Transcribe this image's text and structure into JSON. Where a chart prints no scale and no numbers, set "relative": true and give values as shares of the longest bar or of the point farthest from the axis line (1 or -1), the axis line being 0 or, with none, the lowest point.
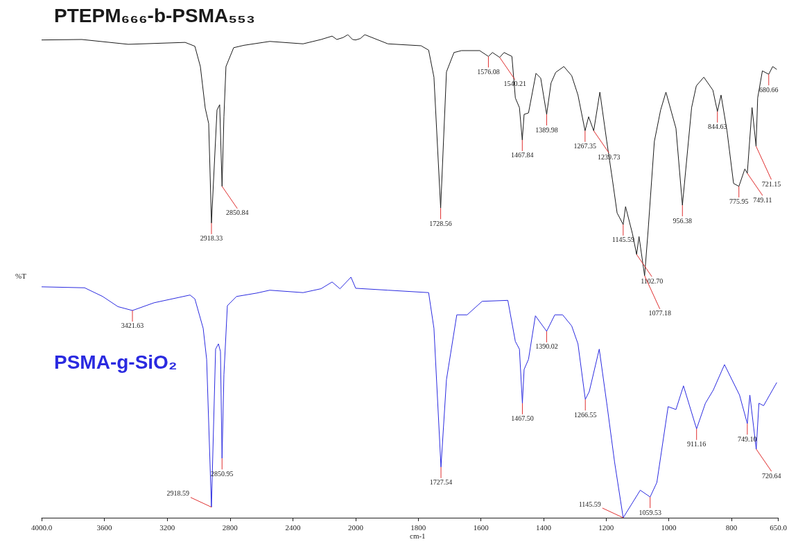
{
  "chart_data": [
    {
      "type": "line",
      "relative": true,
      "ylabel": "%T",
      "xlim": [
        4000,
        2000
      ],
      "xticks": [
        {
          "value": 4000,
          "label": "4000.0"
        },
        3600,
        3200,
        2800,
        2400,
        2000
      ],
      "tick_labels": "x",
      "series": [
        {
          "name": "PTEPM₆₆₆-b-PSMA₅₅₃",
          "color": "#1a1a1a",
          "x": [
            4000,
            3744,
            3448,
            3086,
            3024,
            2989,
            2958,
            2936,
            2918.33,
            2883,
            2866,
            2850.84,
            2839,
            2826,
            2777,
            2711,
            2547,
            2335,
            2220,
            2150,
            2120,
            2080,
            2050,
            2020,
            2000
          ],
          "values": [
            0.989,
            0.99,
            0.98,
            0.984,
            0.976,
            0.934,
            0.848,
            0.816,
            0.61,
            0.844,
            0.855,
            0.686,
            0.83,
            0.934,
            0.973,
            0.978,
            0.986,
            0.981,
            0.99,
            0.997,
            0.99,
            0.994,
            1.0,
            0.99,
            0.989
          ]
        },
        {
          "name": "PSMA-g-SiO₂",
          "color": "#2a2ae0",
          "x": [
            4000,
            3726,
            3611,
            3514,
            3421.63,
            3284,
            3055,
            3024,
            2971,
            2949,
            2918.59,
            2892,
            2874,
            2861,
            2850.95,
            2839,
            2817,
            2759,
            2631,
            2547,
            2335,
            2221,
            2150,
            2100,
            2030,
            2000
          ],
          "values": [
            0.478,
            0.476,
            0.458,
            0.437,
            0.429,
            0.445,
            0.461,
            0.453,
            0.392,
            0.328,
            0.022,
            0.349,
            0.36,
            0.344,
            0.123,
            0.296,
            0.439,
            0.458,
            0.465,
            0.471,
            0.466,
            0.474,
            0.488,
            0.474,
            0.498,
            0.475
          ]
        }
      ],
      "annotations": [
        {
          "text": "2918.33",
          "x": 2918.33,
          "y": 0.61
        },
        {
          "text": "2850.84",
          "x": 2850.84,
          "y": 0.686
        },
        {
          "text": "3421.63",
          "x": 3421.63,
          "y": 0.429
        },
        {
          "text": "2918.59",
          "x": 2918.59,
          "y": 0.022
        },
        {
          "text": "2850.95",
          "x": 2850.95,
          "y": 0.123
        }
      ]
    },
    {
      "type": "line",
      "relative": true,
      "xlabel": "cm-1",
      "xlim": [
        2000,
        650
      ],
      "xticks": [
        1800,
        1600,
        1400,
        1200,
        1000,
        800,
        {
          "value": 650,
          "label": "650.0"
        }
      ],
      "tick_labels": "x",
      "series": [
        {
          "color": "#1a1a1a",
          "x": [
            2000,
            1985,
            1971,
            1897,
            1791,
            1767,
            1750,
            1728.56,
            1710,
            1686,
            1662,
            1604,
            1576.08,
            1563,
            1540.21,
            1526,
            1501,
            1490,
            1477,
            1467.84,
            1462,
            1448,
            1424,
            1409,
            1389.98,
            1376,
            1361,
            1335,
            1310,
            1290,
            1267.35,
            1256,
            1239.73,
            1220,
            1198,
            1180,
            1165,
            1145.59,
            1138,
            1116,
            1102.7,
            1095,
            1077.18,
            1066,
            1046,
            1026,
            1009,
            977,
            956.38,
            927,
            912,
            888,
            859,
            844.63,
            833,
            814,
            793,
            775.95,
            757,
            749.11,
            747,
            734,
            721.15,
            716,
            701,
            680.66,
            668,
            655
          ],
          "values": [
            0.989,
            0.992,
            1.0,
            0.981,
            0.977,
            0.968,
            0.912,
            0.641,
            0.923,
            0.963,
            0.967,
            0.967,
            0.955,
            0.963,
            0.953,
            0.963,
            0.955,
            0.869,
            0.849,
            0.782,
            0.835,
            0.838,
            0.92,
            0.91,
            0.835,
            0.9,
            0.922,
            0.934,
            0.915,
            0.875,
            0.801,
            0.83,
            0.801,
            0.881,
            0.779,
            0.7,
            0.631,
            0.607,
            0.644,
            0.588,
            0.545,
            0.582,
            0.501,
            0.594,
            0.779,
            0.844,
            0.881,
            0.806,
            0.647,
            0.849,
            0.894,
            0.912,
            0.885,
            0.841,
            0.875,
            0.801,
            0.692,
            0.686,
            0.722,
            0.713,
            0.732,
            0.849,
            0.769,
            0.869,
            0.925,
            0.918,
            0.934,
            0.928
          ]
        },
        {
          "color": "#2a2ae0",
          "x": [
            2000,
            1897,
            1767,
            1750,
            1727.54,
            1710,
            1677,
            1644,
            1596,
            1514,
            1490,
            1477,
            1467.5,
            1462,
            1448,
            1426,
            1390.02,
            1364,
            1339,
            1310,
            1290,
            1266.55,
            1254,
            1222,
            1197,
            1173,
            1145.59,
            1091,
            1059.53,
            1038,
            1002,
            977,
            953,
            911.16,
            883,
            858,
            822,
            774,
            749.1,
            741,
            720.64,
            712,
            697,
            655
          ],
          "values": [
            0.475,
            0.471,
            0.466,
            0.392,
            0.105,
            0.286,
            0.42,
            0.42,
            0.448,
            0.45,
            0.365,
            0.349,
            0.237,
            0.307,
            0.328,
            0.418,
            0.386,
            0.42,
            0.42,
            0.397,
            0.36,
            0.245,
            0.261,
            0.349,
            0.232,
            0.115,
            0,
            0.057,
            0.043,
            0.073,
            0.23,
            0.224,
            0.273,
            0.184,
            0.237,
            0.264,
            0.317,
            0.254,
            0.195,
            0.254,
            0.142,
            0.237,
            0.232,
            0.28
          ]
        }
      ],
      "annotations": [
        {
          "text": "1728.56",
          "x": 1728.56,
          "y": 0.641
        },
        {
          "text": "1576.08",
          "x": 1576.08,
          "y": 0.955
        },
        {
          "text": "1540.21",
          "x": 1540.21,
          "y": 0.953
        },
        {
          "text": "1467.84",
          "x": 1467.84,
          "y": 0.782
        },
        {
          "text": "1389.98",
          "x": 1389.98,
          "y": 0.835
        },
        {
          "text": "1267.35",
          "x": 1267.35,
          "y": 0.801
        },
        {
          "text": "1239.73",
          "x": 1239.73,
          "y": 0.801
        },
        {
          "text": "1145.59",
          "x": 1145.59,
          "y": 0.607
        },
        {
          "text": "1102.70",
          "x": 1102.7,
          "y": 0.545
        },
        {
          "text": "1077.18",
          "x": 1077.18,
          "y": 0.501
        },
        {
          "text": "956.38",
          "x": 956.38,
          "y": 0.647
        },
        {
          "text": "844.63",
          "x": 844.63,
          "y": 0.841
        },
        {
          "text": "775.95",
          "x": 775.95,
          "y": 0.686
        },
        {
          "text": "749.11",
          "x": 749.11,
          "y": 0.713
        },
        {
          "text": "721.15",
          "x": 721.15,
          "y": 0.769
        },
        {
          "text": "680.66",
          "x": 680.66,
          "y": 0.918
        },
        {
          "text": "1727.54",
          "x": 1727.54,
          "y": 0.105
        },
        {
          "text": "1467.50",
          "x": 1467.5,
          "y": 0.237
        },
        {
          "text": "1390.02",
          "x": 1390.02,
          "y": 0.386
        },
        {
          "text": "1266.55",
          "x": 1266.55,
          "y": 0.245
        },
        {
          "text": "1145.59",
          "x": 1145.59,
          "y": 0
        },
        {
          "text": "1059.53",
          "x": 1059.53,
          "y": 0.043
        },
        {
          "text": "911.16",
          "x": 911.16,
          "y": 0.184
        },
        {
          "text": "749.10",
          "x": 749.1,
          "y": 0.195
        },
        {
          "text": "720.64",
          "x": 720.64,
          "y": 0.142
        }
      ]
    }
  ]
}
